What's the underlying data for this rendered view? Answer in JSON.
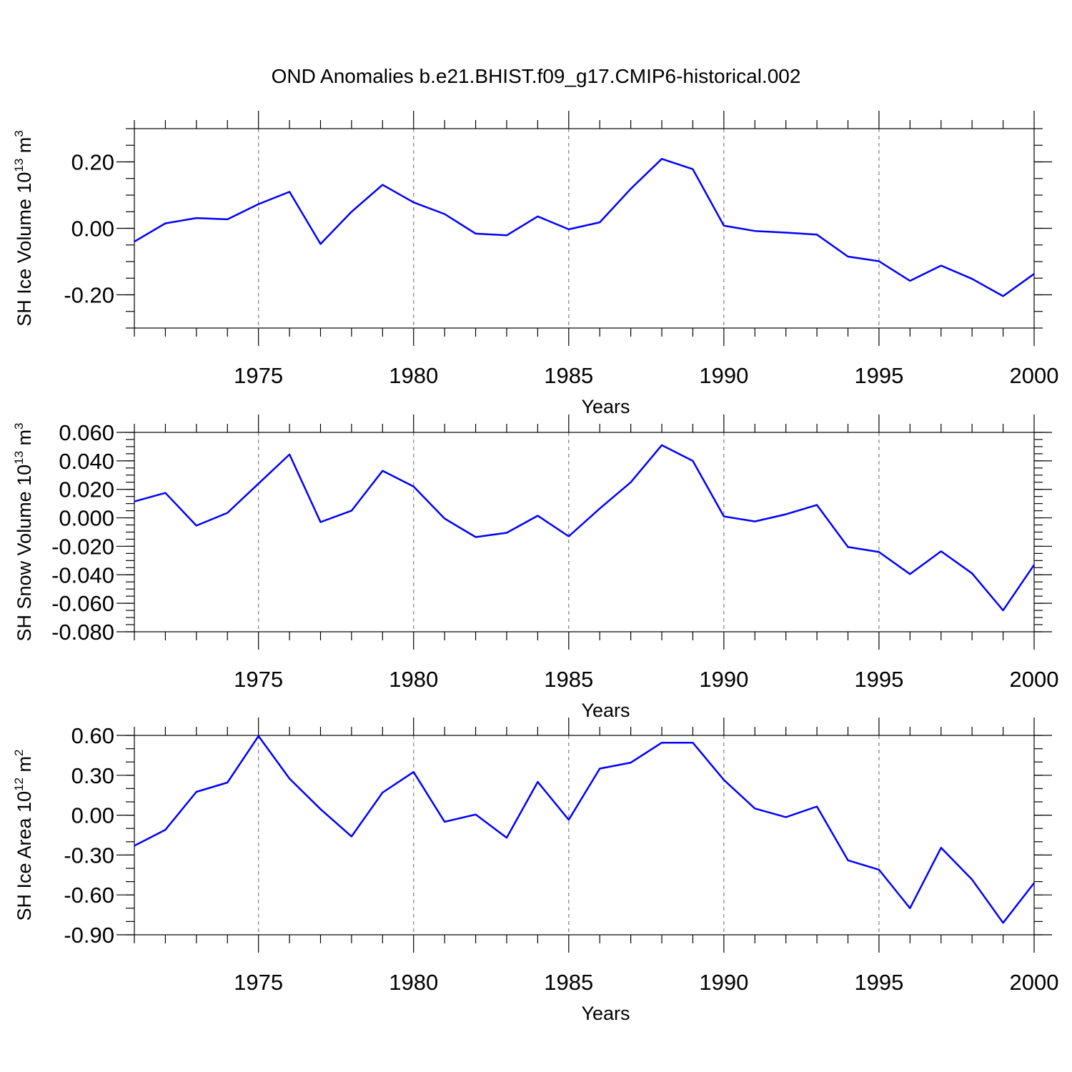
{
  "title": "OND Anomalies b.e21.BHIST.f09_g17.CMIP6-historical.002",
  "line_color": "#0000ff",
  "grid": "vertical dashed lines at major x ticks",
  "chart_data": [
    {
      "type": "line",
      "ylabel": {
        "text": "SH Ice Volume 10",
        "exp": "13",
        "unit": " m",
        "unit_exp": "3"
      },
      "xlabel": "Years",
      "xlim": [
        1971,
        2000
      ],
      "ylim": [
        -0.3,
        0.3
      ],
      "yticks": [
        -0.2,
        0.0,
        0.2
      ],
      "ytick_labels": [
        "-0.20",
        "0.00",
        "0.20"
      ],
      "yminor_step": 0.05,
      "xticks": [
        1975,
        1980,
        1985,
        1990,
        1995,
        2000
      ],
      "xtick_labels": [
        "1975",
        "1980",
        "1985",
        "1990",
        "1995",
        "2000"
      ],
      "x": [
        1971,
        1972,
        1973,
        1974,
        1975,
        1976,
        1977,
        1978,
        1979,
        1980,
        1981,
        1982,
        1983,
        1984,
        1985,
        1986,
        1987,
        1988,
        1989,
        1990,
        1991,
        1992,
        1993,
        1994,
        1995,
        1996,
        1997,
        1998,
        1999,
        2000
      ],
      "series": [
        {
          "values": [
            -0.04,
            0.015,
            0.031,
            0.027,
            0.073,
            0.11,
            -0.047,
            0.05,
            0.131,
            0.078,
            0.043,
            -0.016,
            -0.021,
            0.036,
            -0.003,
            0.018,
            0.119,
            0.209,
            0.178,
            0.008,
            -0.008,
            -0.013,
            -0.019,
            -0.085,
            -0.099,
            -0.158,
            -0.112,
            -0.152,
            -0.204,
            -0.137
          ]
        }
      ]
    },
    {
      "type": "line",
      "ylabel": {
        "text": "SH Snow Volume 10",
        "exp": "13",
        "unit": " m",
        "unit_exp": "3"
      },
      "xlabel": "Years",
      "xlim": [
        1971,
        2000
      ],
      "ylim": [
        -0.08,
        0.06
      ],
      "yticks": [
        -0.08,
        -0.06,
        -0.04,
        -0.02,
        0.0,
        0.02,
        0.04,
        0.06
      ],
      "ytick_labels": [
        "-0.080",
        "-0.060",
        "-0.040",
        "-0.020",
        "0.000",
        "0.020",
        "0.040",
        "0.060"
      ],
      "yminor_step": 0.005,
      "xticks": [
        1975,
        1980,
        1985,
        1990,
        1995,
        2000
      ],
      "xtick_labels": [
        "1975",
        "1980",
        "1985",
        "1990",
        "1995",
        "2000"
      ],
      "x": [
        1971,
        1972,
        1973,
        1974,
        1975,
        1976,
        1977,
        1978,
        1979,
        1980,
        1981,
        1982,
        1983,
        1984,
        1985,
        1986,
        1987,
        1988,
        1989,
        1990,
        1991,
        1992,
        1993,
        1994,
        1995,
        1996,
        1997,
        1998,
        1999,
        2000
      ],
      "series": [
        {
          "values": [
            0.0115,
            0.0175,
            -0.0055,
            0.0035,
            0.024,
            0.0445,
            -0.003,
            0.005,
            0.033,
            0.022,
            -0.0005,
            -0.0135,
            -0.0105,
            0.0015,
            -0.013,
            0.0065,
            0.025,
            0.051,
            0.04,
            0.001,
            -0.0025,
            0.0025,
            0.009,
            -0.0205,
            -0.024,
            -0.0395,
            -0.0235,
            -0.039,
            -0.065,
            -0.033
          ]
        }
      ]
    },
    {
      "type": "line",
      "ylabel": {
        "text": "SH Ice Area 10",
        "exp": "12",
        "unit": " m",
        "unit_exp": "2"
      },
      "xlabel": "Years",
      "xlim": [
        1971,
        2000
      ],
      "ylim": [
        -0.9,
        0.6
      ],
      "yticks": [
        -0.9,
        -0.6,
        -0.3,
        0.0,
        0.3,
        0.6
      ],
      "ytick_labels": [
        "-0.90",
        "-0.60",
        "-0.30",
        "0.00",
        "0.30",
        "0.60"
      ],
      "yminor_step": 0.1,
      "xticks": [
        1975,
        1980,
        1985,
        1990,
        1995,
        2000
      ],
      "xtick_labels": [
        "1975",
        "1980",
        "1985",
        "1990",
        "1995",
        "2000"
      ],
      "x": [
        1971,
        1972,
        1973,
        1974,
        1975,
        1976,
        1977,
        1978,
        1979,
        1980,
        1981,
        1982,
        1983,
        1984,
        1985,
        1986,
        1987,
        1988,
        1989,
        1990,
        1991,
        1992,
        1993,
        1994,
        1995,
        1996,
        1997,
        1998,
        1999,
        2000
      ],
      "series": [
        {
          "values": [
            -0.23,
            -0.11,
            0.175,
            0.245,
            0.595,
            0.275,
            0.045,
            -0.16,
            0.17,
            0.325,
            -0.05,
            0.005,
            -0.17,
            0.25,
            -0.035,
            0.35,
            0.395,
            0.545,
            0.545,
            0.265,
            0.05,
            -0.015,
            0.065,
            -0.34,
            -0.41,
            -0.7,
            -0.245,
            -0.485,
            -0.81,
            -0.51
          ]
        }
      ]
    }
  ]
}
